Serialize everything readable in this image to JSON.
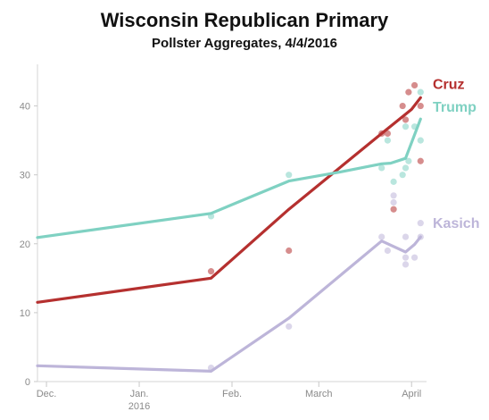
{
  "chart_data": {
    "type": "line",
    "title": "Wisconsin Republican Primary",
    "subtitle": "Pollster Aggregates, 4/4/2016",
    "xlabel": "",
    "ylabel": "",
    "x_range": [
      "2015-11-28",
      "2016-04-06"
    ],
    "ylim": [
      0,
      45
    ],
    "y_ticks": [
      0,
      10,
      20,
      30,
      40
    ],
    "x_ticks": [
      {
        "date": "2015-12-01",
        "label": "Dec.",
        "sub": ""
      },
      {
        "date": "2016-01-01",
        "label": "Jan.",
        "sub": "2016"
      },
      {
        "date": "2016-02-01",
        "label": "Feb.",
        "sub": ""
      },
      {
        "date": "2016-03-01",
        "label": "March",
        "sub": ""
      },
      {
        "date": "2016-04-01",
        "label": "April",
        "sub": ""
      }
    ],
    "grid": false,
    "series": [
      {
        "name": "Cruz",
        "color": "#b5302f",
        "x": [
          "2015-11-28",
          "2016-01-25",
          "2016-02-20",
          "2016-03-22",
          "2016-04-01",
          "2016-04-04"
        ],
        "y": [
          11.5,
          15,
          25,
          36,
          39.5,
          41.2
        ],
        "points": [
          {
            "x": "2016-01-25",
            "y": 16
          },
          {
            "x": "2016-02-20",
            "y": 19
          },
          {
            "x": "2016-03-22",
            "y": 36
          },
          {
            "x": "2016-03-24",
            "y": 36
          },
          {
            "x": "2016-03-26",
            "y": 25
          },
          {
            "x": "2016-03-29",
            "y": 40
          },
          {
            "x": "2016-03-30",
            "y": 38
          },
          {
            "x": "2016-03-31",
            "y": 42
          },
          {
            "x": "2016-04-02",
            "y": 43
          },
          {
            "x": "2016-04-04",
            "y": 40
          },
          {
            "x": "2016-04-04",
            "y": 32
          }
        ]
      },
      {
        "name": "Trump",
        "color": "#7fd1c2",
        "x": [
          "2015-11-28",
          "2016-01-25",
          "2016-02-20",
          "2016-03-08",
          "2016-03-22",
          "2016-03-25",
          "2016-03-30",
          "2016-04-04"
        ],
        "y": [
          20.9,
          24.4,
          29.1,
          30.4,
          31.6,
          31.7,
          32.4,
          38.1
        ],
        "points": [
          {
            "x": "2016-01-25",
            "y": 24
          },
          {
            "x": "2016-02-20",
            "y": 30
          },
          {
            "x": "2016-03-22",
            "y": 31
          },
          {
            "x": "2016-03-24",
            "y": 35
          },
          {
            "x": "2016-03-26",
            "y": 29
          },
          {
            "x": "2016-03-29",
            "y": 30
          },
          {
            "x": "2016-03-30",
            "y": 37
          },
          {
            "x": "2016-03-30",
            "y": 31
          },
          {
            "x": "2016-03-31",
            "y": 32
          },
          {
            "x": "2016-04-02",
            "y": 37
          },
          {
            "x": "2016-04-04",
            "y": 42
          },
          {
            "x": "2016-04-04",
            "y": 35
          }
        ]
      },
      {
        "name": "Kasich",
        "color": "#bdb5d9",
        "x": [
          "2015-11-28",
          "2016-01-25",
          "2016-02-20",
          "2016-03-22",
          "2016-03-30",
          "2016-04-02",
          "2016-04-04"
        ],
        "y": [
          2.3,
          1.5,
          9.2,
          20.4,
          18.8,
          19.9,
          21
        ],
        "points": [
          {
            "x": "2016-01-25",
            "y": 2
          },
          {
            "x": "2016-02-20",
            "y": 8
          },
          {
            "x": "2016-03-22",
            "y": 21
          },
          {
            "x": "2016-03-24",
            "y": 19
          },
          {
            "x": "2016-03-26",
            "y": 27
          },
          {
            "x": "2016-03-26",
            "y": 26
          },
          {
            "x": "2016-03-30",
            "y": 21
          },
          {
            "x": "2016-03-30",
            "y": 17
          },
          {
            "x": "2016-03-30",
            "y": 18
          },
          {
            "x": "2016-04-02",
            "y": 18
          },
          {
            "x": "2016-04-04",
            "y": 23
          },
          {
            "x": "2016-04-04",
            "y": 21
          }
        ]
      }
    ]
  }
}
